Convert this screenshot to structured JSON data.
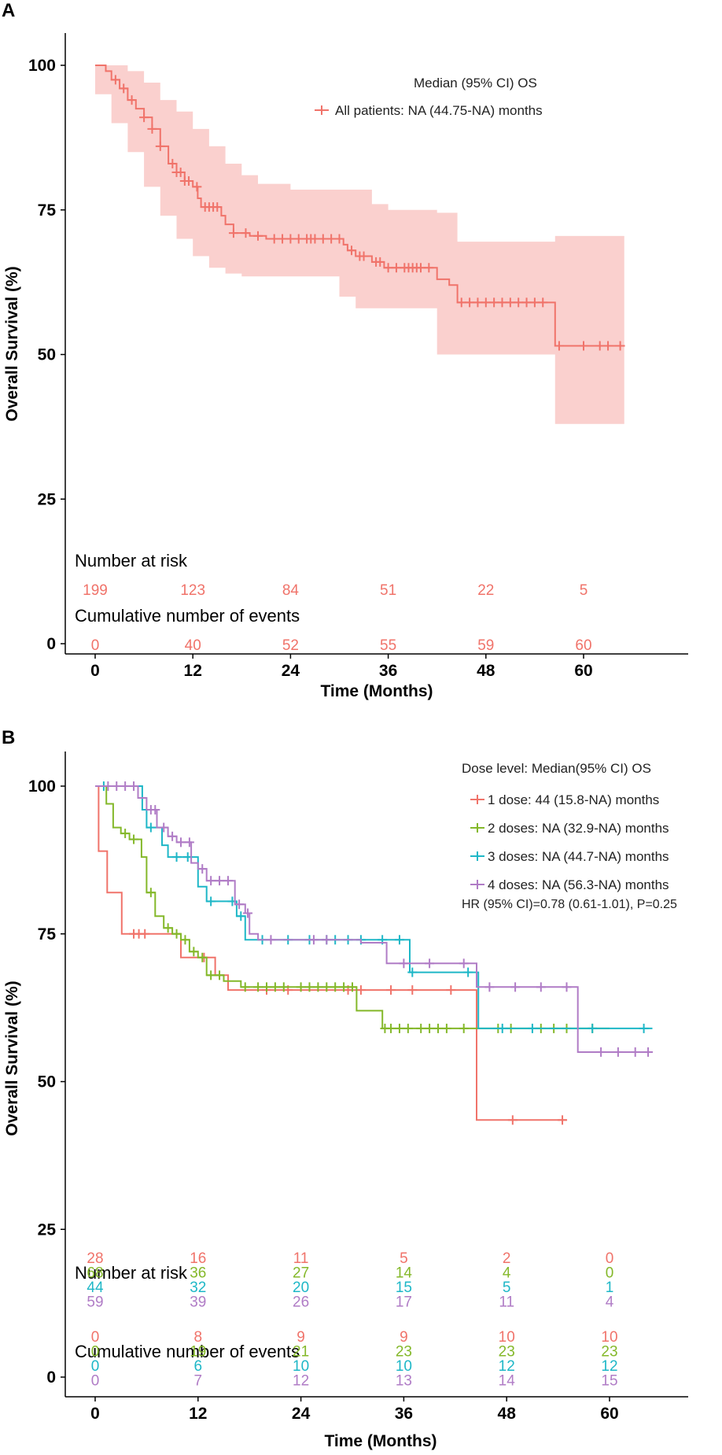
{
  "chart_data": [
    {
      "panel": "A",
      "type": "line",
      "subtype": "kaplan-meier",
      "xlabel": "Time (Months)",
      "ylabel": "Overall Survival (%)",
      "xlim": [
        -2,
        76
      ],
      "ylim": [
        -1.5,
        106
      ],
      "x_ticks": [
        0,
        12,
        24,
        36,
        48,
        60
      ],
      "y_ticks": [
        0,
        25,
        50,
        75,
        100
      ],
      "legend_title": "Median (95% CI) OS",
      "series": [
        {
          "name": "All patients: NA (44.75-NA) months",
          "color": "#F0736A",
          "step": [
            [
              0,
              100
            ],
            [
              1.3,
              99
            ],
            [
              2,
              97.5
            ],
            [
              3,
              96
            ],
            [
              4,
              94
            ],
            [
              5,
              92.5
            ],
            [
              6,
              91
            ],
            [
              7,
              89
            ],
            [
              8,
              86
            ],
            [
              9,
              83
            ],
            [
              10,
              81.5
            ],
            [
              11,
              80
            ],
            [
              12,
              79
            ],
            [
              12.6,
              77
            ],
            [
              13,
              75.5
            ],
            [
              15.5,
              74
            ],
            [
              16,
              72.5
            ],
            [
              17,
              71
            ],
            [
              19,
              70.5
            ],
            [
              21,
              70
            ],
            [
              30,
              70
            ],
            [
              30.5,
              69
            ],
            [
              31,
              68
            ],
            [
              32,
              67
            ],
            [
              34,
              66
            ],
            [
              35.5,
              65
            ],
            [
              41,
              65
            ],
            [
              42,
              63
            ],
            [
              43.5,
              62
            ],
            [
              44.5,
              59
            ],
            [
              55.5,
              59
            ],
            [
              56.5,
              51.5
            ],
            [
              65,
              51.5
            ]
          ],
          "ci_upper": [
            [
              0,
              100
            ],
            [
              2,
              100
            ],
            [
              4,
              99
            ],
            [
              6,
              97
            ],
            [
              8,
              94
            ],
            [
              10,
              92
            ],
            [
              12,
              89
            ],
            [
              14,
              86
            ],
            [
              16,
              83
            ],
            [
              18,
              81
            ],
            [
              20,
              79.5
            ],
            [
              24,
              78.5
            ],
            [
              30,
              78.5
            ],
            [
              34,
              76
            ],
            [
              36,
              75
            ],
            [
              42,
              74.5
            ],
            [
              44.5,
              69.5
            ],
            [
              56.5,
              69.5
            ],
            [
              56.5,
              70.5
            ],
            [
              65,
              70.5
            ]
          ],
          "ci_lower": [
            [
              0,
              100
            ],
            [
              2,
              95
            ],
            [
              4,
              90
            ],
            [
              6,
              85
            ],
            [
              8,
              79
            ],
            [
              10,
              74
            ],
            [
              12,
              70
            ],
            [
              14,
              67
            ],
            [
              16,
              65
            ],
            [
              18,
              64
            ],
            [
              20,
              63.5
            ],
            [
              24,
              63.5
            ],
            [
              30,
              63.5
            ],
            [
              32,
              60
            ],
            [
              36,
              58
            ],
            [
              42,
              58
            ],
            [
              44.5,
              50
            ],
            [
              56.5,
              50
            ],
            [
              56.5,
              38
            ],
            [
              65,
              38
            ]
          ],
          "censor": [
            2.5,
            3.5,
            4.5,
            6,
            7,
            8,
            9.5,
            10,
            10.5,
            11,
            11.5,
            12.5,
            13.5,
            14,
            14.5,
            15,
            17,
            18.5,
            20,
            22,
            23,
            24,
            25,
            26,
            26.5,
            27,
            28,
            29,
            30,
            31.5,
            32.5,
            33,
            34.5,
            35,
            36,
            37,
            38,
            38.5,
            39,
            39.5,
            40,
            41,
            45,
            46,
            47,
            48,
            49,
            50,
            51,
            52,
            53,
            54,
            55,
            57,
            60,
            62,
            63,
            64.5
          ]
        }
      ],
      "risk_table": {
        "title": "Number at risk",
        "times": [
          0,
          12,
          24,
          36,
          48,
          60
        ],
        "rows": [
          {
            "color": "#F0736A",
            "values": [
              "199",
              "123",
              "84",
              "51",
              "22",
              "5"
            ]
          }
        ]
      },
      "events_table": {
        "title": "Cumulative number of events",
        "times": [
          0,
          12,
          24,
          36,
          48,
          60
        ],
        "rows": [
          {
            "color": "#F0736A",
            "values": [
              "0",
              "40",
              "52",
              "55",
              "59",
              "60"
            ]
          }
        ]
      }
    },
    {
      "panel": "B",
      "type": "line",
      "subtype": "kaplan-meier",
      "xlabel": "Time (Months)",
      "ylabel": "Overall Survival (%)",
      "xlim": [
        -2,
        76
      ],
      "ylim": [
        -1.5,
        106
      ],
      "x_ticks": [
        0,
        12,
        24,
        36,
        48,
        60
      ],
      "y_ticks": [
        0,
        25,
        50,
        75,
        100
      ],
      "legend_title": "Dose level: Median(95% CI) OS",
      "hr_text": "HR (95% CI)=0.78 (0.61-1.01), P=0.25",
      "series": [
        {
          "name": "1 dose:   44 (15.8-NA) months",
          "color": "#F0736A",
          "step": [
            [
              0,
              100
            ],
            [
              0.4,
              89
            ],
            [
              1.4,
              82
            ],
            [
              3.1,
              75
            ],
            [
              6.2,
              75
            ],
            [
              10,
              71
            ],
            [
              14,
              68
            ],
            [
              15.5,
              65.5
            ],
            [
              44,
              65.5
            ],
            [
              44.5,
              43.5
            ],
            [
              55,
              43.5
            ]
          ],
          "censor": [
            4.5,
            5.1,
            5.8,
            12.7,
            20,
            22.5,
            29.5,
            31,
            34.5,
            37,
            41.5,
            48.7,
            54.5
          ]
        },
        {
          "name": "2 doses: NA (32.9-NA) months",
          "color": "#84B82A",
          "step": [
            [
              0,
              100
            ],
            [
              1.3,
              97
            ],
            [
              2.1,
              93
            ],
            [
              3,
              92
            ],
            [
              4,
              91
            ],
            [
              5.4,
              88
            ],
            [
              6,
              82
            ],
            [
              7,
              78
            ],
            [
              8,
              76
            ],
            [
              9,
              75
            ],
            [
              10,
              74
            ],
            [
              11,
              72
            ],
            [
              12,
              71
            ],
            [
              13,
              68
            ],
            [
              15,
              67
            ],
            [
              17,
              66
            ],
            [
              30,
              66
            ],
            [
              30.5,
              62
            ],
            [
              33,
              62
            ],
            [
              33.5,
              59
            ],
            [
              60,
              59
            ]
          ],
          "censor": [
            3.5,
            4.5,
            6.5,
            8.5,
            9.5,
            10.5,
            11.5,
            12.5,
            13.5,
            14.5,
            17.5,
            19,
            20,
            21,
            22,
            24,
            25,
            26,
            27,
            28,
            29,
            30,
            33.8,
            34.5,
            35.5,
            36.5,
            38,
            39,
            40,
            41,
            43,
            47,
            48.5,
            52,
            53.5,
            55,
            58
          ]
        },
        {
          "name": "3 doses: NA (44.7-NA) months",
          "color": "#1EB7C7",
          "step": [
            [
              0,
              100
            ],
            [
              4.5,
              100
            ],
            [
              5.5,
              96
            ],
            [
              6,
              93
            ],
            [
              7.8,
              90
            ],
            [
              8.5,
              88
            ],
            [
              11,
              88
            ],
            [
              12,
              83
            ],
            [
              13,
              80.5
            ],
            [
              15.7,
              80.5
            ],
            [
              16.5,
              78
            ],
            [
              17.5,
              74
            ],
            [
              36.5,
              74
            ],
            [
              36.7,
              68.5
            ],
            [
              44.5,
              68.5
            ],
            [
              44.7,
              59
            ],
            [
              65,
              59
            ]
          ],
          "censor": [
            1,
            6.5,
            9.5,
            10.8,
            13.5,
            16,
            17,
            19.5,
            22.5,
            25,
            27,
            28,
            29.5,
            31,
            33.5,
            35.5,
            37,
            43.5,
            47.5,
            51,
            58,
            64
          ]
        },
        {
          "name": "4 doses: NA (56.3-NA) months",
          "color": "#B07CC6",
          "step": [
            [
              0,
              100
            ],
            [
              5,
              98
            ],
            [
              6,
              96
            ],
            [
              7.2,
              93
            ],
            [
              8.5,
              91.5
            ],
            [
              9.5,
              90.5
            ],
            [
              10.5,
              90.5
            ],
            [
              11.2,
              87
            ],
            [
              12,
              86
            ],
            [
              13,
              84
            ],
            [
              16,
              84
            ],
            [
              16.3,
              80
            ],
            [
              17.5,
              78.5
            ],
            [
              18,
              75
            ],
            [
              19,
              74
            ],
            [
              30,
              74
            ],
            [
              31,
              73.5
            ],
            [
              34,
              70
            ],
            [
              44,
              70
            ],
            [
              44.5,
              66
            ],
            [
              56,
              66
            ],
            [
              56.3,
              55
            ],
            [
              65,
              55
            ]
          ],
          "censor": [
            1.5,
            2.5,
            3.5,
            4.5,
            6.5,
            7,
            8,
            9,
            10,
            11,
            12.5,
            13.5,
            14.5,
            15.5,
            16.8,
            17.8,
            20.5,
            25.5,
            27,
            36,
            39,
            43,
            46,
            49,
            52,
            55,
            59,
            61,
            63,
            64.5
          ]
        }
      ],
      "risk_table": {
        "title": "Number at risk",
        "times": [
          0,
          12,
          24,
          36,
          48,
          60
        ],
        "rows": [
          {
            "color": "#F0736A",
            "values": [
              "28",
              "16",
              "11",
              "5",
              "2",
              "0"
            ]
          },
          {
            "color": "#84B82A",
            "values": [
              "68",
              "36",
              "27",
              "14",
              "4",
              "0"
            ]
          },
          {
            "color": "#1EB7C7",
            "values": [
              "44",
              "32",
              "20",
              "15",
              "5",
              "1"
            ]
          },
          {
            "color": "#B07CC6",
            "values": [
              "59",
              "39",
              "26",
              "17",
              "11",
              "4"
            ]
          }
        ]
      },
      "events_table": {
        "title": "Cumulative number of events",
        "times": [
          0,
          12,
          24,
          36,
          48,
          60
        ],
        "rows": [
          {
            "color": "#F0736A",
            "values": [
              "0",
              "8",
              "9",
              "9",
              "10",
              "10"
            ]
          },
          {
            "color": "#84B82A",
            "values": [
              "0",
              "19",
              "21",
              "23",
              "23",
              "23"
            ]
          },
          {
            "color": "#1EB7C7",
            "values": [
              "0",
              "6",
              "10",
              "10",
              "12",
              "12"
            ]
          },
          {
            "color": "#B07CC6",
            "values": [
              "0",
              "7",
              "12",
              "13",
              "14",
              "15"
            ]
          }
        ]
      }
    }
  ]
}
